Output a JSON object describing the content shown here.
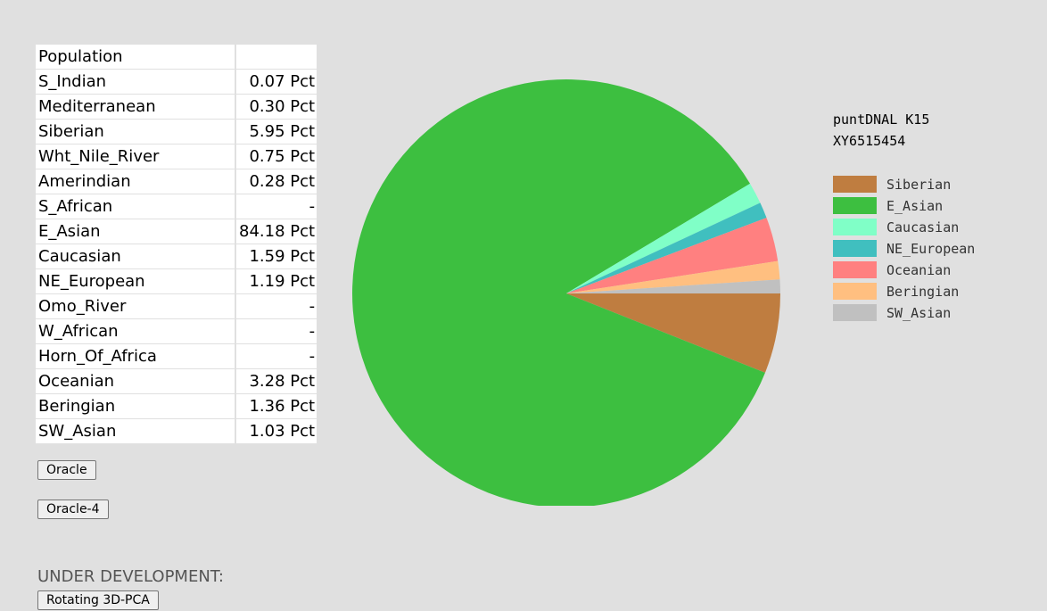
{
  "table": {
    "header": [
      "Population",
      ""
    ],
    "rows": [
      {
        "name": "S_Indian",
        "value": "0.07 Pct"
      },
      {
        "name": "Mediterranean",
        "value": "0.30 Pct"
      },
      {
        "name": "Siberian",
        "value": "5.95 Pct"
      },
      {
        "name": "Wht_Nile_River",
        "value": "0.75 Pct"
      },
      {
        "name": "Amerindian",
        "value": "0.28 Pct"
      },
      {
        "name": "S_African",
        "value": "-"
      },
      {
        "name": "E_Asian",
        "value": "84.18 Pct"
      },
      {
        "name": "Caucasian",
        "value": "1.59 Pct"
      },
      {
        "name": "NE_European",
        "value": "1.19 Pct"
      },
      {
        "name": "Omo_River",
        "value": "-"
      },
      {
        "name": "W_African",
        "value": "-"
      },
      {
        "name": "Horn_Of_Africa",
        "value": "-"
      },
      {
        "name": "Oceanian",
        "value": "3.28 Pct"
      },
      {
        "name": "Beringian",
        "value": "1.36 Pct"
      },
      {
        "name": "SW_Asian",
        "value": "1.03 Pct"
      }
    ]
  },
  "buttons": {
    "oracle": "Oracle",
    "oracle4": "Oracle-4",
    "rotate3d": "Rotating 3D-PCA"
  },
  "under_development_label": "UNDER DEVELOPMENT:",
  "chart_data": {
    "type": "pie",
    "title": "puntDNAL K15",
    "subtitle": "XY6515454",
    "legend_position": "right",
    "slices": [
      {
        "label": "Siberian",
        "value": 5.95,
        "color": "#bf7d40"
      },
      {
        "label": "E_Asian",
        "value": 84.18,
        "color": "#3dbf40"
      },
      {
        "label": "Caucasian",
        "value": 1.59,
        "color": "#80ffc7"
      },
      {
        "label": "NE_European",
        "value": 1.19,
        "color": "#40bfbf"
      },
      {
        "label": "Oceanian",
        "value": 3.28,
        "color": "#ff8080"
      },
      {
        "label": "Beringian",
        "value": 1.36,
        "color": "#ffbf80"
      },
      {
        "label": "SW_Asian",
        "value": 1.03,
        "color": "#c0c0c0"
      }
    ]
  }
}
